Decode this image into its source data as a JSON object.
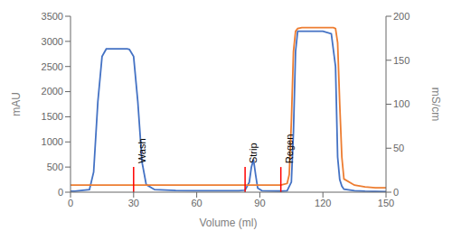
{
  "chart_data": {
    "type": "line",
    "xlabel": "Volume (ml)",
    "ylabel": "mAU",
    "y2label": "mS/cm",
    "xlim": [
      0,
      150
    ],
    "xticks": [
      0,
      30,
      60,
      90,
      120,
      150
    ],
    "ylim": [
      0,
      3500
    ],
    "yticks": [
      0,
      500,
      1000,
      1500,
      2000,
      2500,
      3000,
      3500
    ],
    "y2lim": [
      0,
      200
    ],
    "y2ticks": [
      0,
      50,
      100,
      150,
      200
    ],
    "grid": false,
    "series": [
      {
        "color": "#4472C4",
        "x": [
          0,
          2,
          9,
          11,
          13,
          15,
          17,
          27,
          28,
          30,
          32,
          34,
          36,
          40,
          50,
          60,
          70,
          78,
          80,
          83,
          85,
          86,
          87,
          88,
          89,
          91,
          95,
          100,
          103,
          105,
          106,
          107,
          108,
          110,
          115,
          120,
          124,
          126,
          127,
          128,
          129,
          130,
          135,
          140,
          145,
          150
        ],
        "values": [
          20,
          20,
          50,
          400,
          1800,
          2700,
          2850,
          2850,
          2840,
          2700,
          1800,
          600,
          150,
          50,
          35,
          30,
          28,
          28,
          28,
          40,
          200,
          500,
          650,
          350,
          80,
          30,
          25,
          22,
          30,
          200,
          1200,
          2800,
          3200,
          3200,
          3200,
          3200,
          3150,
          2500,
          700,
          250,
          120,
          60,
          30,
          20,
          15,
          12
        ]
      },
      {
        "color": "#ED7D31",
        "axis": "y2",
        "x": [
          0,
          90,
          100,
          103,
          104,
          105,
          106,
          107,
          108,
          110,
          115,
          120,
          125,
          126,
          127,
          128,
          129,
          130,
          135,
          140,
          145,
          150
        ],
        "values": [
          8,
          8,
          8,
          10,
          20,
          80,
          160,
          183,
          186,
          187,
          187,
          187,
          187,
          186,
          170,
          100,
          40,
          15,
          8,
          6,
          5,
          5
        ]
      }
    ],
    "annotations": [
      {
        "text": "Wash",
        "x": 30,
        "y": 500.5,
        "color": "#FF0000"
      },
      {
        "text": "Strip",
        "x": 83,
        "y": 500.5,
        "color": "#FF0000"
      },
      {
        "text": "Regen",
        "x": 100,
        "y": 500.5,
        "color": "#FF0000"
      }
    ]
  }
}
